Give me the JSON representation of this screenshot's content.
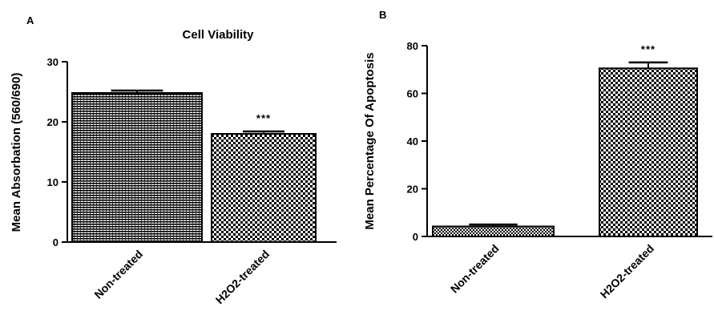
{
  "chart_data": [
    {
      "panel": "A",
      "type": "bar",
      "title": "Cell Viability",
      "ylabel": "Mean Absorbation (560/690)",
      "xlabel": "",
      "ylim": [
        0,
        30
      ],
      "yticks": [
        0,
        10,
        20,
        30
      ],
      "categories": [
        "Non-treated",
        "H2O2-treated"
      ],
      "values": [
        24.8,
        18.0
      ],
      "errors": [
        0.4,
        0.4
      ],
      "significance": [
        "",
        "***"
      ],
      "patterns": [
        "stripe",
        "checker"
      ],
      "grid": false,
      "legend": "none"
    },
    {
      "panel": "B",
      "type": "bar",
      "title": "",
      "ylabel": "Mean Percentage Of Apoptosis",
      "xlabel": "",
      "ylim": [
        0,
        80
      ],
      "yticks": [
        0,
        20,
        40,
        60,
        80
      ],
      "categories": [
        "Non-treated",
        "H2O2-treated"
      ],
      "values": [
        4.2,
        70.5
      ],
      "errors": [
        0.8,
        2.5
      ],
      "significance": [
        "",
        "***"
      ],
      "patterns": [
        "fine-checker",
        "checker"
      ],
      "grid": false,
      "legend": "none"
    }
  ],
  "colors": {
    "ink": "#000000",
    "background": "#ffffff",
    "light": "#d4d4d4"
  }
}
